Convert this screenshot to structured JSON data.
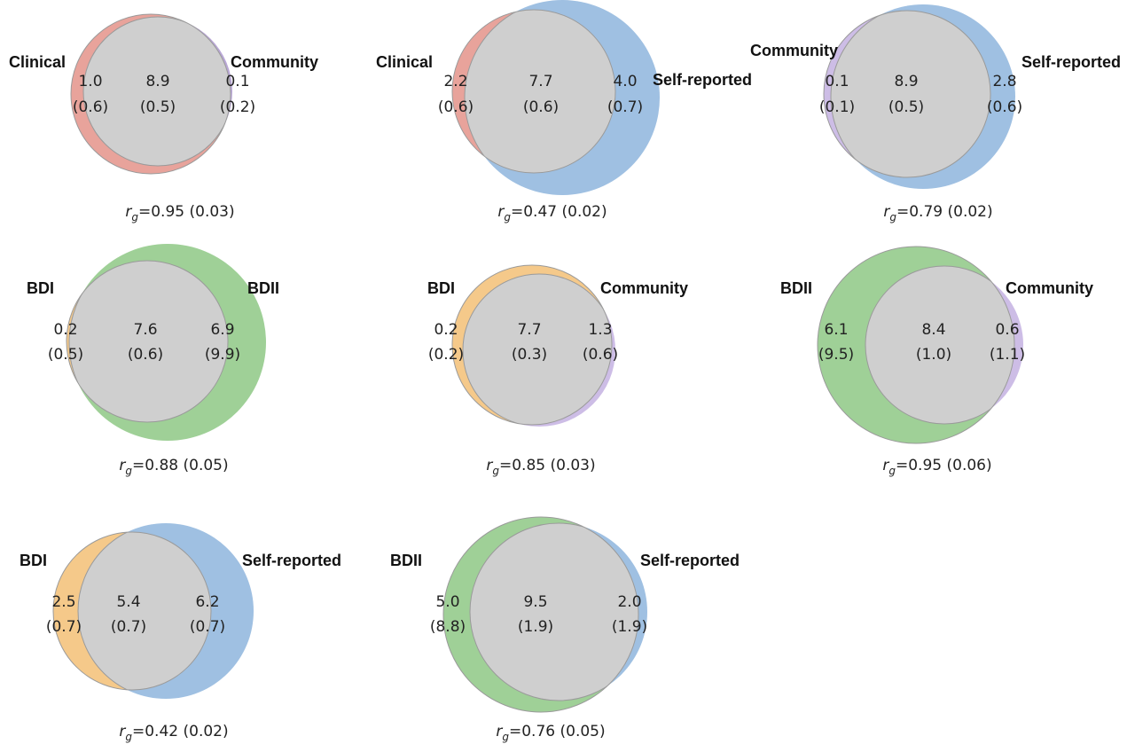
{
  "colors": {
    "Clinical": "#e8a39b",
    "Community_red_pair": "#b9a7d6",
    "Self-reported": "#9fc0e2",
    "BDI": "#f5c98a",
    "BDII": "#9fd097",
    "Community": "#cdbde6",
    "overlap": "#cfcfcf",
    "overlap_stroke": "#9a9a9a"
  },
  "panels": [
    {
      "id": "clinical-community",
      "left": {
        "label": "Clinical",
        "value": "1.0",
        "se": "(0.6)",
        "color": "#e8a39b"
      },
      "shared": {
        "value": "8.9",
        "se": "(0.5)"
      },
      "right": {
        "label": "Community",
        "value": "0.1",
        "se": "(0.2)",
        "color": "#b9a7d6"
      },
      "rg": {
        "prefix": "r",
        "sub": "g",
        "text": "=0.95 (0.03)"
      }
    },
    {
      "id": "clinical-selfreported",
      "left": {
        "label": "Clinical",
        "value": "2.2",
        "se": "(0.6)",
        "color": "#e8a39b"
      },
      "shared": {
        "value": "7.7",
        "se": "(0.6)"
      },
      "right": {
        "label": "Self-reported",
        "value": "4.0",
        "se": "(0.7)",
        "color": "#9fc0e2"
      },
      "rg": {
        "prefix": "r",
        "sub": "g",
        "text": "=0.47 (0.02)"
      }
    },
    {
      "id": "community-selfreported",
      "left": {
        "label": "Community",
        "value": "0.1",
        "se": "(0.1)",
        "color": "#cdbde6"
      },
      "shared": {
        "value": "8.9",
        "se": "(0.5)"
      },
      "right": {
        "label": "Self-reported",
        "value": "2.8",
        "se": "(0.6)",
        "color": "#9fc0e2"
      },
      "rg": {
        "prefix": "r",
        "sub": "g",
        "text": "=0.79 (0.02)"
      }
    },
    {
      "id": "bdi-bdii",
      "left": {
        "label": "BDI",
        "value": "0.2",
        "se": "(0.5)",
        "color": "#f5c98a"
      },
      "shared": {
        "value": "7.6",
        "se": "(0.6)"
      },
      "right": {
        "label": "BDII",
        "value": "6.9",
        "se": "(9.9)",
        "color": "#9fd097"
      },
      "rg": {
        "prefix": "r",
        "sub": "g",
        "text": "=0.88 (0.05)"
      }
    },
    {
      "id": "bdi-community",
      "left": {
        "label": "BDI",
        "value": "0.2",
        "se": "(0.2)",
        "color": "#f5c98a"
      },
      "shared": {
        "value": "7.7",
        "se": "(0.3)"
      },
      "right": {
        "label": "Community",
        "value": "1.3",
        "se": "(0.6)",
        "color": "#cdbde6"
      },
      "rg": {
        "prefix": "r",
        "sub": "g",
        "text": "=0.85 (0.03)"
      }
    },
    {
      "id": "bdii-community",
      "left": {
        "label": "BDII",
        "value": "6.1",
        "se": "(9.5)",
        "color": "#9fd097"
      },
      "shared": {
        "value": "8.4",
        "se": "(1.0)"
      },
      "right": {
        "label": "Community",
        "value": "0.6",
        "se": "(1.1)",
        "color": "#cdbde6"
      },
      "rg": {
        "prefix": "r",
        "sub": "g",
        "text": "=0.95 (0.06)"
      }
    },
    {
      "id": "bdi-selfreported",
      "left": {
        "label": "BDI",
        "value": "2.5",
        "se": "(0.7)",
        "color": "#f5c98a"
      },
      "shared": {
        "value": "5.4",
        "se": "(0.7)"
      },
      "right": {
        "label": "Self-reported",
        "value": "6.2",
        "se": "(0.7)",
        "color": "#9fc0e2"
      },
      "rg": {
        "prefix": "r",
        "sub": "g",
        "text": "=0.42 (0.02)"
      }
    },
    {
      "id": "bdii-selfreported",
      "left": {
        "label": "BDII",
        "value": "5.0",
        "se": "(8.8)",
        "color": "#9fd097"
      },
      "shared": {
        "value": "9.5",
        "se": "(1.9)"
      },
      "right": {
        "label": "Self-reported",
        "value": "2.0",
        "se": "(1.9)",
        "color": "#9fc0e2"
      },
      "rg": {
        "prefix": "r",
        "sub": "g",
        "text": "=0.76 (0.05)"
      }
    }
  ]
}
